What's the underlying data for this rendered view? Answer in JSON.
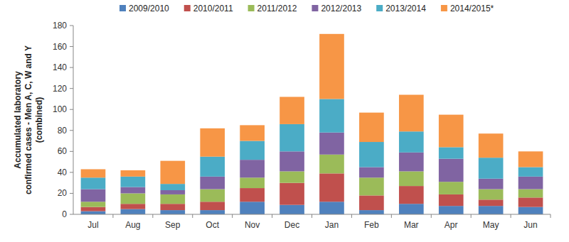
{
  "chart_data": {
    "type": "bar",
    "stacked": true,
    "grid": false,
    "y_label": [
      "Accumulated laboratory",
      "confirmed cases - Men A, C, W and Y",
      "(combined)"
    ],
    "categories": [
      "Jul",
      "Aug",
      "Sep",
      "Oct",
      "Nov",
      "Dec",
      "Jan",
      "Feb",
      "Mar",
      "Apr",
      "May",
      "Jun"
    ],
    "ylim": [
      0,
      180
    ],
    "yticks": [
      0,
      20,
      40,
      60,
      80,
      100,
      120,
      140,
      160,
      180
    ],
    "legend": "top",
    "series": [
      {
        "name": "2009/2010",
        "color": "#4f81bd",
        "values": [
          3,
          5,
          4,
          4,
          12,
          9,
          12,
          4,
          10,
          8,
          8,
          7
        ]
      },
      {
        "name": "2010/2011",
        "color": "#c0504d",
        "values": [
          4,
          5,
          6,
          8,
          13,
          21,
          27,
          14,
          17,
          11,
          6,
          9
        ]
      },
      {
        "name": "2011/2012",
        "color": "#9bbb59",
        "values": [
          5,
          10,
          9,
          12,
          10,
          11,
          18,
          17,
          14,
          12,
          10,
          8
        ]
      },
      {
        "name": "2012/2013",
        "color": "#8064a2",
        "values": [
          12,
          6,
          4,
          12,
          17,
          19,
          21,
          10,
          18,
          22,
          10,
          12
        ]
      },
      {
        "name": "2013/2014",
        "color": "#4bacc6",
        "values": [
          11,
          10,
          6,
          19,
          18,
          26,
          32,
          24,
          20,
          11,
          20,
          9
        ]
      },
      {
        "name": "2014/2015*",
        "color": "#f79646",
        "values": [
          8,
          6,
          22,
          27,
          15,
          26,
          62,
          28,
          35,
          31,
          23,
          15
        ]
      }
    ]
  }
}
